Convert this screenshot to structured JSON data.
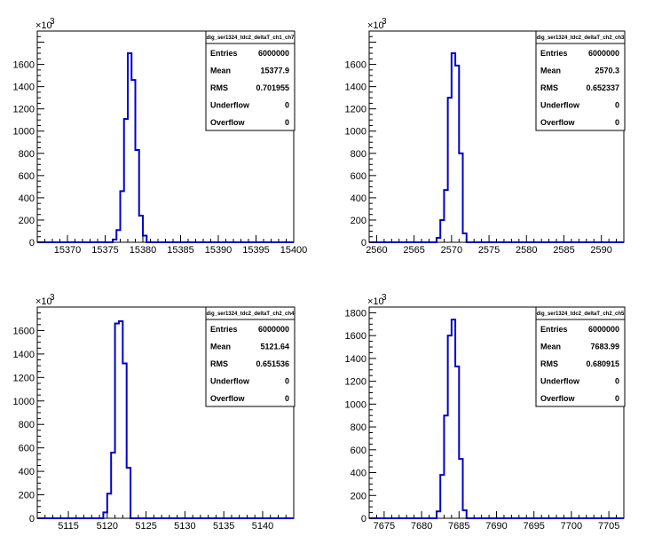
{
  "chart_data": [
    {
      "type": "histogram",
      "stats_title": "dig_ser1324_tdc2_deltaT_ch1_ch7",
      "stats": [
        {
          "label": "Entries",
          "value": "6000000"
        },
        {
          "label": "Mean",
          "value": "15377.9"
        },
        {
          "label": "RMS",
          "value": "0.701955"
        },
        {
          "label": "Underflow",
          "value": "0"
        },
        {
          "label": "Overflow",
          "value": "0"
        }
      ],
      "y_multiplier": "×10",
      "y_exponent": "3",
      "xlim": [
        15366,
        15400
      ],
      "ylim": [
        0,
        1900
      ],
      "x_ticks": [
        15370,
        15375,
        15380,
        15385,
        15390,
        15395,
        15400
      ],
      "y_ticks": [
        0,
        200,
        400,
        600,
        800,
        1000,
        1200,
        1400,
        1600
      ],
      "bin_width": 0.5,
      "bins_x": [
        15376.0,
        15376.5,
        15377.0,
        15377.5,
        15378.0,
        15378.5,
        15379.0,
        15379.5,
        15380.0
      ],
      "bins_y": [
        25,
        110,
        460,
        1110,
        1700,
        1460,
        830,
        240,
        60
      ]
    },
    {
      "type": "histogram",
      "stats_title": "dig_ser1324_tdc2_deltaT_ch2_ch3",
      "stats": [
        {
          "label": "Entries",
          "value": "6000000"
        },
        {
          "label": "Mean",
          "value": "2570.3"
        },
        {
          "label": "RMS",
          "value": "0.652337"
        },
        {
          "label": "Underflow",
          "value": "0"
        },
        {
          "label": "Overflow",
          "value": "0"
        }
      ],
      "y_multiplier": "×10",
      "y_exponent": "3",
      "xlim": [
        2559,
        2593
      ],
      "ylim": [
        0,
        1900
      ],
      "x_ticks": [
        2560,
        2565,
        2570,
        2575,
        2580,
        2585,
        2590
      ],
      "y_ticks": [
        0,
        200,
        400,
        600,
        800,
        1000,
        1200,
        1400,
        1600
      ],
      "bin_width": 0.5,
      "bins_x": [
        2568.0,
        2568.5,
        2569.0,
        2569.5,
        2570.0,
        2570.5,
        2571.0,
        2571.5
      ],
      "bins_y": [
        40,
        200,
        470,
        1300,
        1700,
        1590,
        800,
        80
      ]
    },
    {
      "type": "histogram",
      "stats_title": "dig_ser1324_tdc2_deltaT_ch2_ch4",
      "stats": [
        {
          "label": "Entries",
          "value": "6000000"
        },
        {
          "label": "Mean",
          "value": "5121.64"
        },
        {
          "label": "RMS",
          "value": "0.651536"
        },
        {
          "label": "Underflow",
          "value": "0"
        },
        {
          "label": "Overflow",
          "value": "0"
        }
      ],
      "y_multiplier": "×10",
      "y_exponent": "3",
      "xlim": [
        5111,
        5144
      ],
      "ylim": [
        0,
        1800
      ],
      "x_ticks": [
        5115,
        5120,
        5125,
        5130,
        5135,
        5140
      ],
      "y_ticks": [
        0,
        200,
        400,
        600,
        800,
        1000,
        1200,
        1400,
        1600
      ],
      "bin_width": 0.5,
      "bins_x": [
        5119.5,
        5120.0,
        5120.5,
        5121.0,
        5121.5,
        5122.0,
        5122.5
      ],
      "bins_y": [
        50,
        210,
        560,
        1660,
        1680,
        1320,
        430
      ]
    },
    {
      "type": "histogram",
      "stats_title": "dig_ser1324_tdc2_deltaT_ch2_ch5",
      "stats": [
        {
          "label": "Entries",
          "value": "6000000"
        },
        {
          "label": "Mean",
          "value": "7683.99"
        },
        {
          "label": "RMS",
          "value": "0.680915"
        },
        {
          "label": "Underflow",
          "value": "0"
        },
        {
          "label": "Overflow",
          "value": "0"
        }
      ],
      "y_multiplier": "×10",
      "y_exponent": "3",
      "xlim": [
        7673,
        7707
      ],
      "ylim": [
        0,
        1850
      ],
      "x_ticks": [
        7675,
        7680,
        7685,
        7690,
        7695,
        7700,
        7705
      ],
      "y_ticks": [
        0,
        200,
        400,
        600,
        800,
        1000,
        1200,
        1400,
        1600,
        1800
      ],
      "bin_width": 0.5,
      "bins_x": [
        7682.0,
        7682.5,
        7683.0,
        7683.5,
        7684.0,
        7684.5,
        7685.0,
        7685.5
      ],
      "bins_y": [
        60,
        380,
        900,
        1600,
        1740,
        1330,
        520,
        70
      ]
    }
  ],
  "colors": {
    "histogram_line": "#0000cc",
    "frame": "#000000",
    "background": "#ffffff"
  }
}
